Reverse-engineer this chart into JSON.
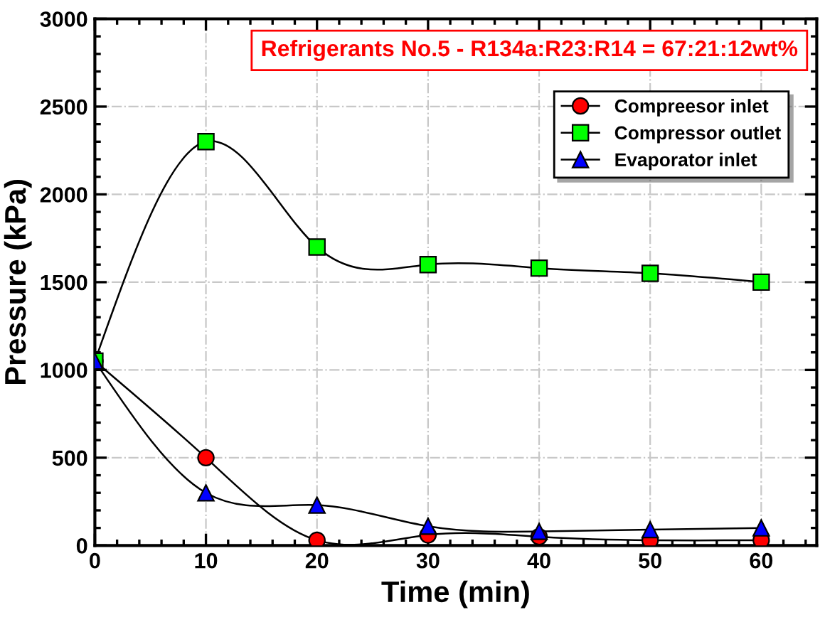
{
  "chart_data": {
    "type": "line",
    "xlabel": "Time (min)",
    "ylabel": "Pressure (kPa)",
    "x": [
      0,
      10,
      20,
      30,
      40,
      50,
      60
    ],
    "xlim": [
      0,
      65
    ],
    "xticks": [
      0,
      10,
      20,
      30,
      40,
      50,
      60
    ],
    "ylim": [
      0,
      3000
    ],
    "yticks": [
      0,
      500,
      1000,
      1500,
      2000,
      2500,
      3000
    ],
    "grid": true,
    "legend": "top right",
    "line_style": "solid",
    "annotations": [
      "Refrigerants No.5 - R134a:R23:R14 = 67:21:12wt%"
    ],
    "series": [
      {
        "name": "Compreesor inlet",
        "color": "#ff0000",
        "marker": "circle",
        "values": [
          1050,
          500,
          30,
          60,
          50,
          30,
          30
        ]
      },
      {
        "name": "Compressor outlet",
        "color": "#00ff00",
        "marker": "square",
        "values": [
          1050,
          2300,
          1700,
          1600,
          1580,
          1550,
          1500
        ]
      },
      {
        "name": "Evaporator inlet",
        "color": "#0000ff",
        "marker": "triangle",
        "values": [
          1050,
          300,
          230,
          110,
          80,
          90,
          100
        ]
      }
    ]
  }
}
